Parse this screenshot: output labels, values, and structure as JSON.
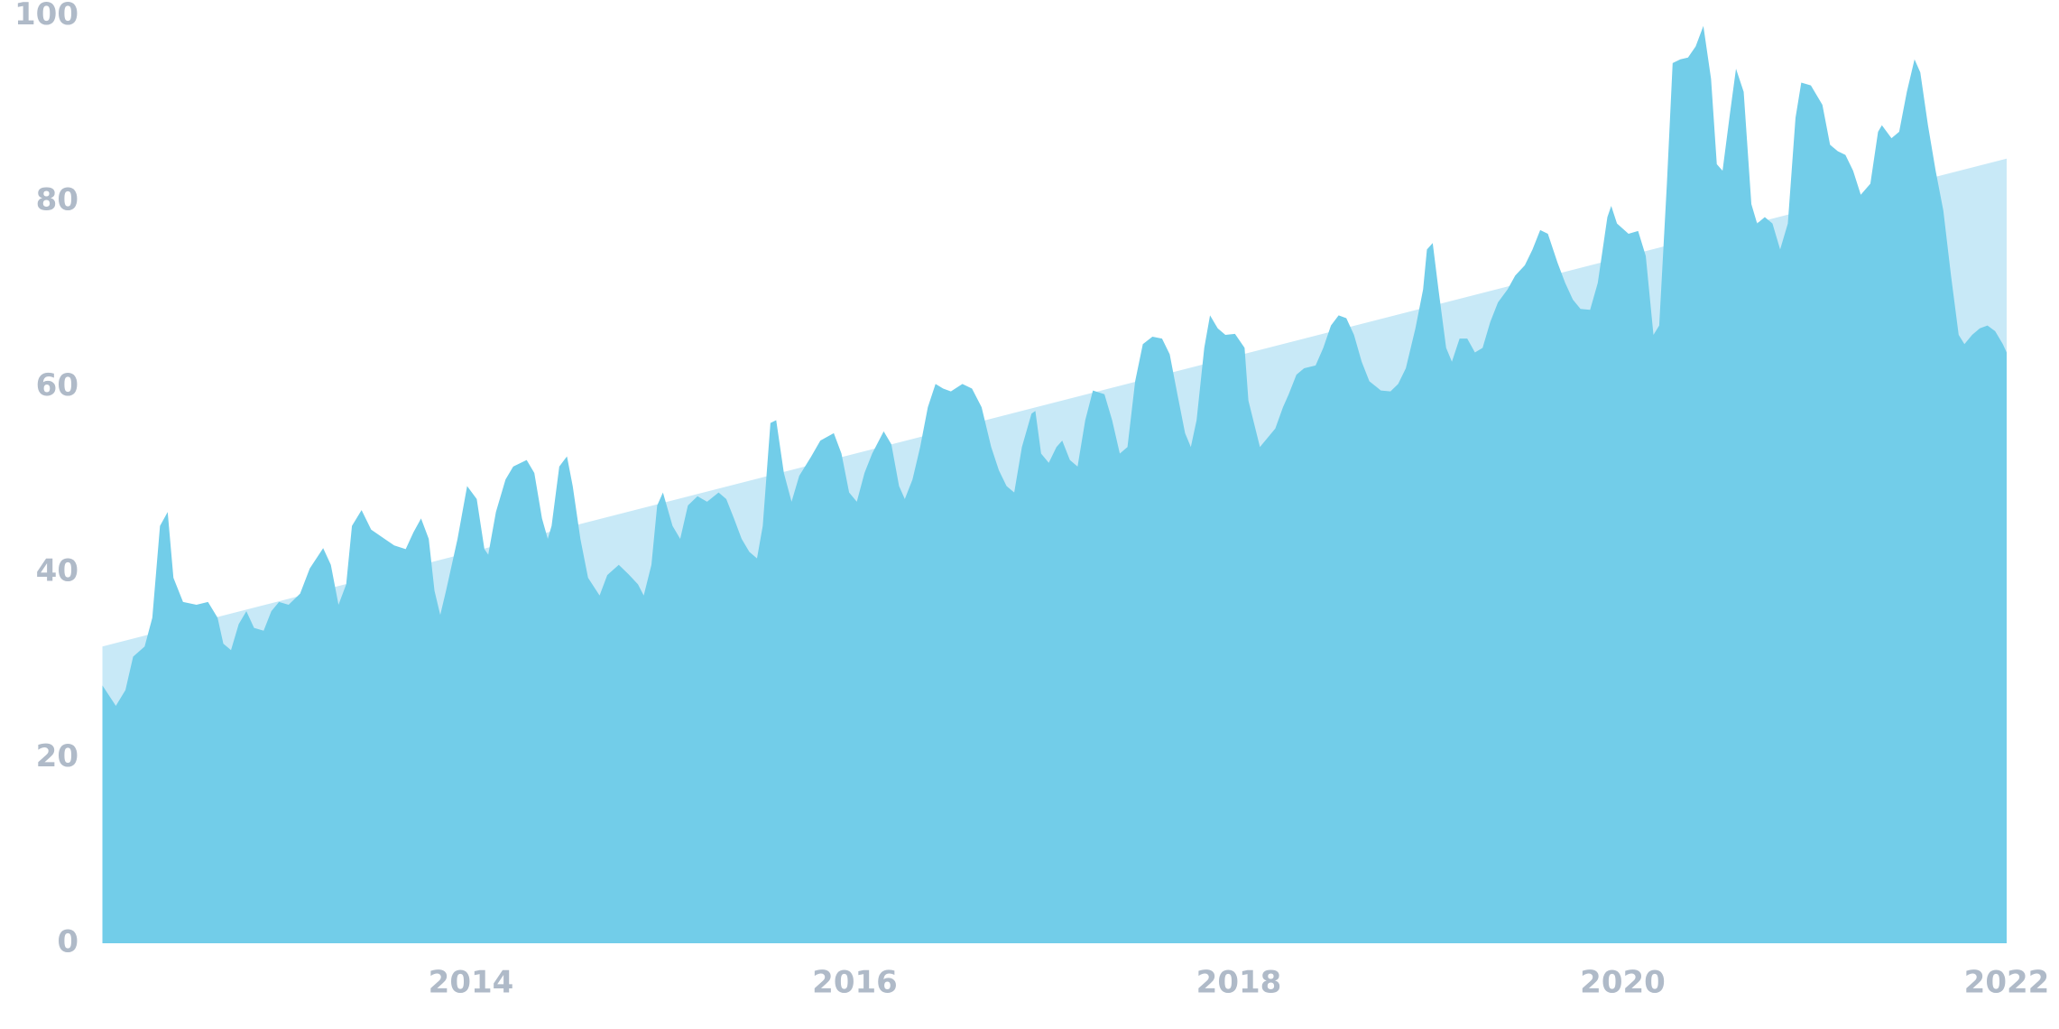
{
  "chart_data": {
    "type": "area",
    "xlim": [
      2012.08,
      2022
    ],
    "xticks": [
      2014,
      2016,
      2018,
      2020,
      2022
    ],
    "ylim": [
      0,
      100
    ],
    "yticks": [
      0,
      20,
      40,
      60,
      80,
      100
    ],
    "grid": false,
    "series": [
      {
        "color": "#c8e9f7",
        "x": [
          2012.08,
          2022
        ],
        "values": [
          32.0,
          84.6
        ]
      },
      {
        "color": "#72cde9",
        "x": [
          2012.08,
          2012.15,
          2012.2,
          2012.24,
          2012.3,
          2012.34,
          2012.38,
          2012.42,
          2012.45,
          2012.5,
          2012.57,
          2012.63,
          2012.68,
          2012.71,
          2012.75,
          2012.79,
          2012.83,
          2012.87,
          2012.92,
          2012.96,
          2013.0,
          2013.05,
          2013.11,
          2013.16,
          2013.23,
          2013.27,
          2013.31,
          2013.35,
          2013.38,
          2013.43,
          2013.48,
          2013.55,
          2013.6,
          2013.66,
          2013.7,
          2013.74,
          2013.78,
          2013.81,
          2013.84,
          2013.87,
          2013.93,
          2013.98,
          2014.03,
          2014.07,
          2014.09,
          2014.13,
          2014.18,
          2014.22,
          2014.29,
          2014.33,
          2014.37,
          2014.4,
          2014.42,
          2014.46,
          2014.5,
          2014.53,
          2014.57,
          2014.61,
          2014.67,
          2014.71,
          2014.77,
          2014.82,
          2014.87,
          2014.9,
          2014.94,
          2014.97,
          2015.0,
          2015.05,
          2015.09,
          2015.13,
          2015.18,
          2015.23,
          2015.29,
          2015.33,
          2015.37,
          2015.41,
          2015.45,
          2015.49,
          2015.52,
          2015.56,
          2015.59,
          2015.63,
          2015.67,
          2015.71,
          2015.77,
          2015.82,
          2015.89,
          2015.93,
          2015.97,
          2016.01,
          2016.05,
          2016.09,
          2016.15,
          2016.19,
          2016.23,
          2016.26,
          2016.3,
          2016.34,
          2016.38,
          2016.42,
          2016.46,
          2016.5,
          2016.56,
          2016.61,
          2016.66,
          2016.71,
          2016.75,
          2016.79,
          2016.83,
          2016.87,
          2016.92,
          2016.94,
          2016.97,
          2017.01,
          2017.05,
          2017.08,
          2017.12,
          2017.16,
          2017.2,
          2017.24,
          2017.3,
          2017.34,
          2017.38,
          2017.42,
          2017.46,
          2017.5,
          2017.55,
          2017.6,
          2017.64,
          2017.68,
          2017.72,
          2017.75,
          2017.78,
          2017.82,
          2017.85,
          2017.89,
          2017.93,
          2017.98,
          2018.03,
          2018.05,
          2018.11,
          2018.15,
          2018.19,
          2018.23,
          2018.26,
          2018.3,
          2018.34,
          2018.4,
          2018.44,
          2018.48,
          2018.52,
          2018.56,
          2018.6,
          2018.64,
          2018.68,
          2018.74,
          2018.79,
          2018.83,
          2018.87,
          2018.92,
          2018.96,
          2018.98,
          2019.01,
          2019.04,
          2019.08,
          2019.11,
          2019.15,
          2019.19,
          2019.23,
          2019.27,
          2019.31,
          2019.35,
          2019.4,
          2019.44,
          2019.49,
          2019.53,
          2019.57,
          2019.61,
          2019.66,
          2019.7,
          2019.74,
          2019.78,
          2019.83,
          2019.87,
          2019.92,
          2019.94,
          2019.97,
          2020.03,
          2020.08,
          2020.12,
          2020.16,
          2020.19,
          2020.23,
          2020.26,
          2020.3,
          2020.34,
          2020.38,
          2020.42,
          2020.46,
          2020.49,
          2020.52,
          2020.56,
          2020.59,
          2020.63,
          2020.67,
          2020.7,
          2020.74,
          2020.78,
          2020.82,
          2020.86,
          2020.9,
          2020.93,
          2020.98,
          2021.04,
          2021.08,
          2021.12,
          2021.16,
          2021.2,
          2021.24,
          2021.29,
          2021.33,
          2021.35,
          2021.4,
          2021.44,
          2021.48,
          2021.52,
          2021.55,
          2021.59,
          2021.63,
          2021.67,
          2021.71,
          2021.75,
          2021.78,
          2021.82,
          2021.86,
          2021.9,
          2021.94,
          2021.98,
          2022.0
        ],
        "values": [
          27.8,
          25.6,
          27.3,
          30.9,
          32.0,
          35.1,
          45.0,
          46.5,
          39.4,
          36.8,
          36.5,
          36.8,
          35.1,
          32.3,
          31.6,
          34.4,
          35.8,
          34.0,
          33.7,
          35.8,
          36.8,
          36.5,
          37.7,
          40.4,
          42.6,
          40.8,
          36.5,
          38.7,
          45.0,
          46.7,
          44.6,
          43.6,
          42.9,
          42.5,
          44.3,
          45.8,
          43.6,
          38.0,
          35.4,
          38.0,
          43.6,
          49.3,
          47.9,
          42.5,
          41.9,
          46.5,
          50.0,
          51.4,
          52.1,
          50.7,
          45.8,
          43.6,
          45.0,
          51.4,
          52.5,
          49.3,
          43.6,
          39.4,
          37.5,
          39.7,
          40.8,
          39.8,
          38.7,
          37.5,
          40.8,
          47.2,
          48.6,
          45.0,
          43.6,
          47.2,
          48.2,
          47.6,
          48.6,
          47.9,
          45.8,
          43.6,
          42.2,
          41.5,
          45.0,
          56.1,
          56.4,
          50.7,
          47.6,
          50.4,
          52.4,
          54.2,
          55.0,
          52.8,
          48.6,
          47.6,
          50.7,
          52.8,
          55.2,
          53.8,
          49.3,
          47.9,
          50.0,
          53.5,
          57.8,
          60.3,
          59.8,
          59.5,
          60.3,
          59.8,
          57.8,
          53.5,
          51.0,
          49.3,
          48.6,
          53.5,
          57.1,
          57.4,
          52.8,
          51.8,
          53.5,
          54.2,
          52.1,
          51.4,
          56.4,
          59.6,
          59.2,
          56.4,
          52.8,
          53.5,
          60.6,
          64.6,
          65.4,
          65.2,
          63.5,
          59.2,
          55.0,
          53.5,
          56.4,
          64.2,
          67.7,
          66.3,
          65.6,
          65.7,
          64.2,
          58.5,
          53.5,
          54.5,
          55.5,
          57.8,
          59.2,
          61.3,
          62.0,
          62.3,
          64.2,
          66.6,
          67.7,
          67.4,
          65.6,
          62.7,
          60.6,
          59.6,
          59.5,
          60.3,
          62.0,
          66.3,
          70.5,
          74.8,
          75.5,
          70.5,
          64.2,
          62.7,
          65.2,
          65.2,
          63.7,
          64.2,
          67.0,
          69.1,
          70.5,
          72.0,
          73.1,
          74.8,
          76.9,
          76.5,
          73.4,
          71.2,
          69.4,
          68.4,
          68.3,
          71.2,
          78.3,
          79.5,
          77.6,
          76.5,
          76.8,
          74.1,
          65.6,
          66.6,
          81.9,
          94.9,
          95.3,
          95.5,
          96.7,
          98.9,
          93.2,
          84.0,
          83.3,
          89.7,
          94.3,
          91.8,
          79.7,
          77.6,
          78.3,
          77.6,
          74.8,
          77.6,
          89.0,
          92.8,
          92.5,
          90.4,
          86.1,
          85.4,
          85.0,
          83.3,
          80.7,
          81.9,
          87.5,
          88.2,
          86.8,
          87.5,
          91.8,
          95.3,
          93.9,
          88.2,
          83.3,
          79.0,
          72.0,
          65.6,
          64.6,
          65.6,
          66.3,
          66.6,
          66.0,
          64.6,
          63.7
        ]
      }
    ]
  }
}
